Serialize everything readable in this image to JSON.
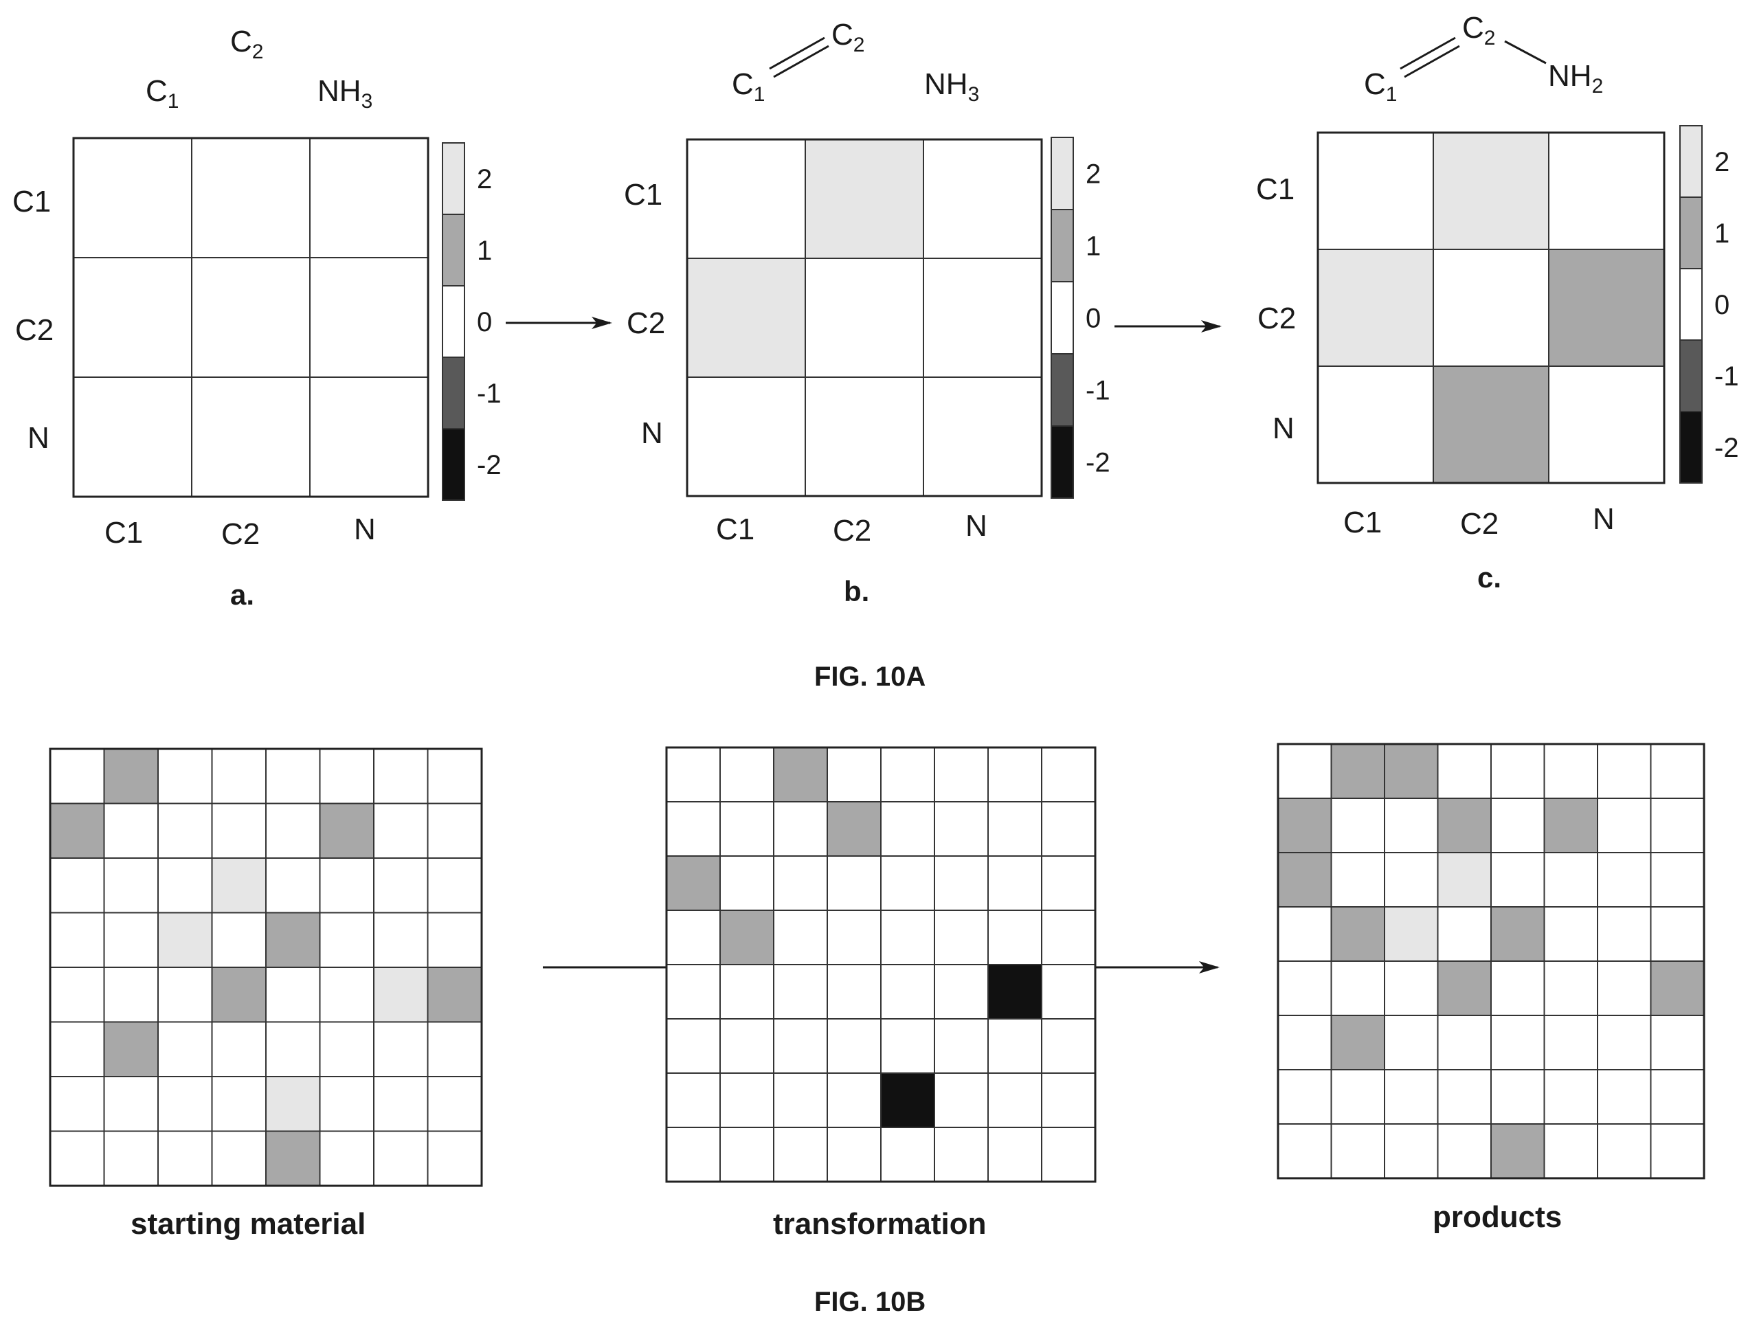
{
  "fig10a": {
    "caption": "FIG. 10A",
    "levels": [
      2,
      1,
      0,
      -1,
      -2
    ],
    "level_colors": {
      "2": "#e6e6e6",
      "1": "#a8a8a8",
      "0": "#ffffff",
      "-1": "#595959",
      "-2": "#111111"
    },
    "colorbar_ticks": [
      "2",
      "1",
      "0",
      "-1",
      "-2"
    ],
    "panels": [
      {
        "letter": "a.",
        "molecule": {
          "atom1": "C",
          "atom1_sub": "1",
          "atom2": "C",
          "atom2_sub": "2",
          "atom3": "NH",
          "atom3_sub": "3"
        },
        "row_labels": [
          "C1",
          "C2",
          "N"
        ],
        "col_labels": [
          "C1",
          "C2",
          "N"
        ],
        "matrix": [
          [
            0,
            0,
            0
          ],
          [
            0,
            0,
            0
          ],
          [
            0,
            0,
            0
          ]
        ]
      },
      {
        "letter": "b.",
        "molecule": {
          "atom1": "C",
          "atom1_sub": "1",
          "atom2": "C",
          "atom2_sub": "2",
          "atom3": "NH",
          "atom3_sub": "3"
        },
        "row_labels": [
          "C1",
          "C2",
          "N"
        ],
        "col_labels": [
          "C1",
          "C2",
          "N"
        ],
        "matrix": [
          [
            0,
            2,
            0
          ],
          [
            2,
            0,
            0
          ],
          [
            0,
            0,
            0
          ]
        ]
      },
      {
        "letter": "c.",
        "molecule": {
          "atom1": "C",
          "atom1_sub": "1",
          "atom2": "C",
          "atom2_sub": "2",
          "atom3": "NH",
          "atom3_sub": "2"
        },
        "row_labels": [
          "C1",
          "C2",
          "N"
        ],
        "col_labels": [
          "C1",
          "C2",
          "N"
        ],
        "matrix": [
          [
            0,
            2,
            0
          ],
          [
            2,
            0,
            1
          ],
          [
            0,
            1,
            0
          ]
        ]
      }
    ]
  },
  "fig10b": {
    "caption": "FIG. 10B",
    "grids": [
      {
        "label": "starting material",
        "matrix": [
          [
            0,
            1,
            0,
            0,
            0,
            0,
            0,
            0
          ],
          [
            1,
            0,
            0,
            0,
            0,
            1,
            0,
            0
          ],
          [
            0,
            0,
            0,
            2,
            0,
            0,
            0,
            0
          ],
          [
            0,
            0,
            2,
            0,
            1,
            0,
            0,
            0
          ],
          [
            0,
            0,
            0,
            1,
            0,
            0,
            2,
            1
          ],
          [
            0,
            1,
            0,
            0,
            0,
            0,
            0,
            0
          ],
          [
            0,
            0,
            0,
            0,
            2,
            0,
            0,
            0
          ],
          [
            0,
            0,
            0,
            0,
            1,
            0,
            0,
            0
          ]
        ]
      },
      {
        "label": "transformation",
        "matrix": [
          [
            0,
            0,
            1,
            0,
            0,
            0,
            0,
            0
          ],
          [
            0,
            0,
            0,
            1,
            0,
            0,
            0,
            0
          ],
          [
            1,
            0,
            0,
            0,
            0,
            0,
            0,
            0
          ],
          [
            0,
            1,
            0,
            0,
            0,
            0,
            0,
            0
          ],
          [
            0,
            0,
            0,
            0,
            0,
            0,
            -2,
            0
          ],
          [
            0,
            0,
            0,
            0,
            0,
            0,
            0,
            0
          ],
          [
            0,
            0,
            0,
            0,
            -2,
            0,
            0,
            0
          ],
          [
            0,
            0,
            0,
            0,
            0,
            0,
            0,
            0
          ]
        ]
      },
      {
        "label": "products",
        "matrix": [
          [
            0,
            1,
            1,
            0,
            0,
            0,
            0,
            0
          ],
          [
            1,
            0,
            0,
            1,
            0,
            1,
            0,
            0
          ],
          [
            1,
            0,
            0,
            2,
            0,
            0,
            0,
            0
          ],
          [
            0,
            1,
            2,
            0,
            1,
            0,
            0,
            0
          ],
          [
            0,
            0,
            0,
            1,
            0,
            0,
            0,
            1
          ],
          [
            0,
            1,
            0,
            0,
            0,
            0,
            0,
            0
          ],
          [
            0,
            0,
            0,
            0,
            0,
            0,
            0,
            0
          ],
          [
            0,
            0,
            0,
            0,
            1,
            0,
            0,
            0
          ]
        ]
      }
    ]
  }
}
